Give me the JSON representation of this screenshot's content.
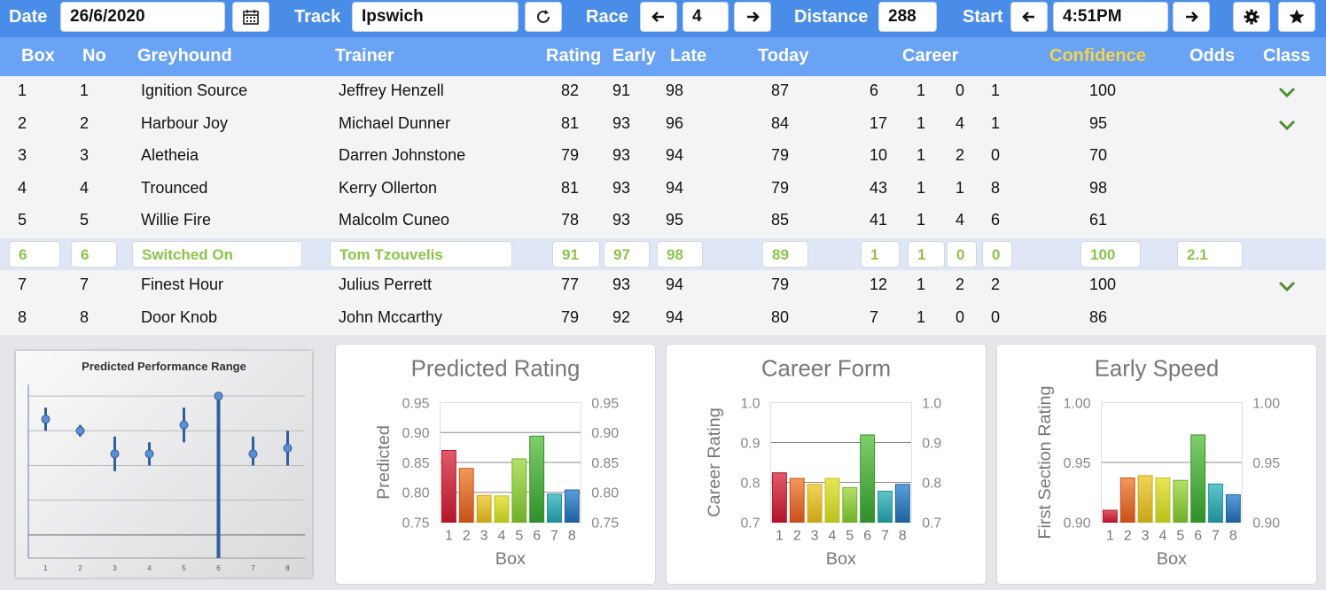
{
  "toolbar": {
    "date_label": "Date",
    "date_value": "26/6/2020",
    "track_label": "Track",
    "track_value": "Ipswich",
    "race_label": "Race",
    "race_value": "4",
    "distance_label": "Distance",
    "distance_value": "288",
    "start_label": "Start",
    "start_value": "4:51PM",
    "icons": [
      "calendar-icon",
      "refresh-icon",
      "arrow-left-icon",
      "arrow-right-icon",
      "gear-icon",
      "star-icon"
    ]
  },
  "columns": {
    "box": "Box",
    "no": "No",
    "greyhound": "Greyhound",
    "trainer": "Trainer",
    "rating": "Rating",
    "early": "Early",
    "late": "Late",
    "today": "Today",
    "career": "Career",
    "confidence": "Confidence",
    "odds": "Odds",
    "class": "Class"
  },
  "rows": [
    {
      "box": "1",
      "no": "1",
      "greyhound": "Ignition Source",
      "trainer": "Jeffrey Henzell",
      "rating": "82",
      "early": "91",
      "late": "98",
      "today": "87",
      "c1": "6",
      "c2": "1",
      "c3": "0",
      "c4": "1",
      "confidence": "100",
      "odds": "",
      "class_check": true
    },
    {
      "box": "2",
      "no": "2",
      "greyhound": "Harbour Joy",
      "trainer": "Michael Dunner",
      "rating": "81",
      "early": "93",
      "late": "96",
      "today": "84",
      "c1": "17",
      "c2": "1",
      "c3": "4",
      "c4": "1",
      "confidence": "95",
      "odds": "",
      "class_check": true
    },
    {
      "box": "3",
      "no": "3",
      "greyhound": "Aletheia",
      "trainer": "Darren Johnstone",
      "rating": "79",
      "early": "93",
      "late": "94",
      "today": "79",
      "c1": "10",
      "c2": "1",
      "c3": "2",
      "c4": "0",
      "confidence": "70",
      "odds": "",
      "class_check": false
    },
    {
      "box": "4",
      "no": "4",
      "greyhound": "Trounced",
      "trainer": "Kerry Ollerton",
      "rating": "81",
      "early": "93",
      "late": "94",
      "today": "79",
      "c1": "43",
      "c2": "1",
      "c3": "1",
      "c4": "8",
      "confidence": "98",
      "odds": "",
      "class_check": false
    },
    {
      "box": "5",
      "no": "5",
      "greyhound": "Willie Fire",
      "trainer": "Malcolm Cuneo",
      "rating": "78",
      "early": "93",
      "late": "95",
      "today": "85",
      "c1": "41",
      "c2": "1",
      "c3": "4",
      "c4": "6",
      "confidence": "61",
      "odds": "",
      "class_check": false
    },
    {
      "box": "6",
      "no": "6",
      "greyhound": "Switched On",
      "trainer": "Tom Tzouvelis",
      "rating": "91",
      "early": "97",
      "late": "98",
      "today": "89",
      "c1": "1",
      "c2": "1",
      "c3": "0",
      "c4": "0",
      "confidence": "100",
      "odds": "2.1",
      "class_check": false,
      "selected": true
    },
    {
      "box": "7",
      "no": "7",
      "greyhound": "Finest Hour",
      "trainer": "Julius Perrett",
      "rating": "77",
      "early": "93",
      "late": "94",
      "today": "79",
      "c1": "12",
      "c2": "1",
      "c3": "2",
      "c4": "2",
      "confidence": "100",
      "odds": "",
      "class_check": true
    },
    {
      "box": "8",
      "no": "8",
      "greyhound": "Door Knob",
      "trainer": "John Mccarthy",
      "rating": "79",
      "early": "92",
      "late": "94",
      "today": "80",
      "c1": "7",
      "c2": "1",
      "c3": "0",
      "c4": "0",
      "confidence": "86",
      "odds": "",
      "class_check": false
    }
  ],
  "colors": {
    "header_bar": "#4a8de8",
    "column_header": "#6aa3f3",
    "confidence_header": "#f5d34a",
    "selected_text": "#8bc34a",
    "check": "#4f8f2f"
  },
  "chart_data": [
    {
      "type": "scatter",
      "title": "Predicted Performance Range",
      "x": [
        1,
        2,
        3,
        4,
        5,
        6,
        7,
        8
      ],
      "x_tick_labels": [
        "1",
        "2",
        "3",
        "4",
        "5",
        "6",
        "7",
        "8"
      ],
      "center": [
        0.86,
        0.84,
        0.8,
        0.8,
        0.85,
        0.9,
        0.8,
        0.81
      ],
      "low": [
        0.84,
        0.83,
        0.77,
        0.78,
        0.82,
        0.62,
        0.78,
        0.78
      ],
      "high": [
        0.88,
        0.85,
        0.83,
        0.82,
        0.88,
        0.9,
        0.83,
        0.84
      ],
      "ylim": [
        0.62,
        0.92
      ],
      "grid": true
    },
    {
      "type": "bar",
      "title": "Predicted Rating",
      "xlabel": "Box",
      "ylabel": "Predicted",
      "categories": [
        "1",
        "2",
        "3",
        "4",
        "5",
        "6",
        "7",
        "8"
      ],
      "values": [
        0.87,
        0.84,
        0.795,
        0.794,
        0.856,
        0.894,
        0.797,
        0.804
      ],
      "ylim": [
        0.75,
        0.95
      ],
      "yticks": [
        "0.75",
        "0.80",
        "0.85",
        "0.90",
        "0.95"
      ],
      "grid": true
    },
    {
      "type": "bar",
      "title": "Career Form",
      "xlabel": "Box",
      "ylabel": "Career Rating",
      "categories": [
        "1",
        "2",
        "3",
        "4",
        "5",
        "6",
        "7",
        "8"
      ],
      "values": [
        0.824,
        0.81,
        0.795,
        0.81,
        0.787,
        0.919,
        0.778,
        0.795
      ],
      "ylim": [
        0.7,
        1.0
      ],
      "yticks": [
        "0.7",
        "0.8",
        "0.9",
        "1.0"
      ],
      "grid": true
    },
    {
      "type": "bar",
      "title": "Early Speed",
      "xlabel": "Box",
      "ylabel": "First Section Rating",
      "categories": [
        "1",
        "2",
        "3",
        "4",
        "5",
        "6",
        "7",
        "8"
      ],
      "values": [
        0.91,
        0.937,
        0.939,
        0.937,
        0.935,
        0.973,
        0.932,
        0.923
      ],
      "ylim": [
        0.9,
        1.0
      ],
      "yticks": [
        "0.90",
        "0.95",
        "1.00"
      ],
      "grid": true
    }
  ]
}
